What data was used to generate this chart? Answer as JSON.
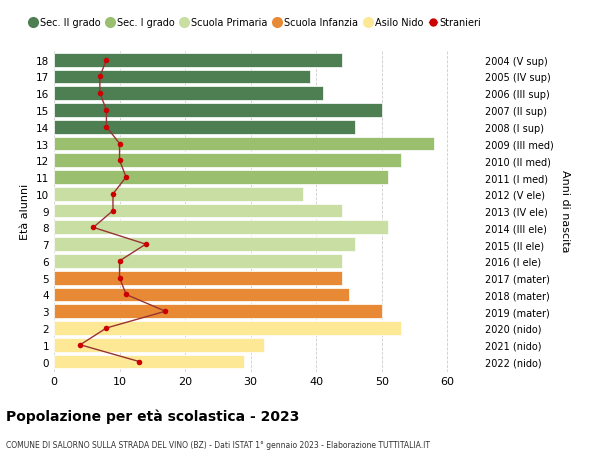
{
  "ages": [
    0,
    1,
    2,
    3,
    4,
    5,
    6,
    7,
    8,
    9,
    10,
    11,
    12,
    13,
    14,
    15,
    16,
    17,
    18
  ],
  "bar_values": [
    29,
    32,
    53,
    50,
    45,
    44,
    44,
    46,
    51,
    44,
    38,
    51,
    53,
    58,
    46,
    50,
    41,
    39,
    44
  ],
  "bar_colors": [
    "#fde995",
    "#fde995",
    "#fde995",
    "#e88a35",
    "#e88a35",
    "#e88a35",
    "#c9dea2",
    "#c9dea2",
    "#c9dea2",
    "#c9dea2",
    "#c9dea2",
    "#9abf6e",
    "#9abf6e",
    "#9abf6e",
    "#4e7f52",
    "#4e7f52",
    "#4e7f52",
    "#4e7f52",
    "#4e7f52"
  ],
  "stranieri": [
    13,
    4,
    8,
    17,
    11,
    10,
    10,
    14,
    6,
    9,
    9,
    11,
    10,
    10,
    8,
    8,
    7,
    7,
    8
  ],
  "right_labels": [
    "2022 (nido)",
    "2021 (nido)",
    "2020 (nido)",
    "2019 (mater)",
    "2018 (mater)",
    "2017 (mater)",
    "2016 (I ele)",
    "2015 (II ele)",
    "2014 (III ele)",
    "2013 (IV ele)",
    "2012 (V ele)",
    "2011 (I med)",
    "2010 (II med)",
    "2009 (III med)",
    "2008 (I sup)",
    "2007 (II sup)",
    "2006 (III sup)",
    "2005 (IV sup)",
    "2004 (V sup)"
  ],
  "ylabel_left": "Età alunni",
  "ylabel_right": "Anni di nascita",
  "title": "Popolazione per età scolastica - 2023",
  "subtitle": "COMUNE DI SALORNO SULLA STRADA DEL VINO (BZ) - Dati ISTAT 1° gennaio 2023 - Elaborazione TUTTITALIA.IT",
  "legend_labels": [
    "Sec. II grado",
    "Sec. I grado",
    "Scuola Primaria",
    "Scuola Infanzia",
    "Asilo Nido",
    "Stranieri"
  ],
  "legend_colors": [
    "#4e7f52",
    "#9abf6e",
    "#c9dea2",
    "#e88a35",
    "#fde995",
    "#cc0000"
  ],
  "xlim": [
    0,
    65
  ],
  "xticks": [
    0,
    10,
    20,
    30,
    40,
    50,
    60
  ],
  "bar_height": 0.82,
  "bg_color": "#ffffff",
  "grid_color": "#cccccc",
  "stranieri_line_color": "#993333",
  "stranieri_dot_color": "#cc0000"
}
